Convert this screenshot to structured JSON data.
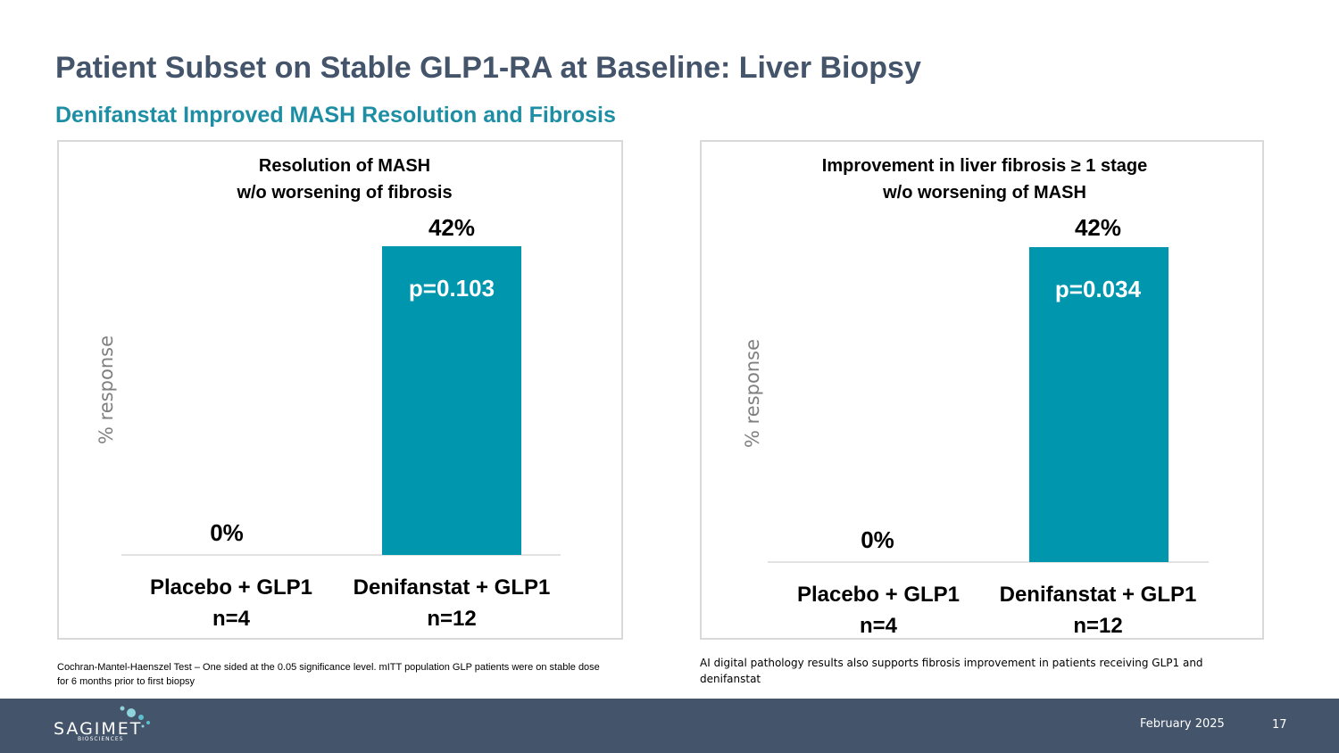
{
  "slide": {
    "title": "Patient Subset on Stable GLP1-RA at Baseline: Liver Biopsy",
    "subtitle": "Denifanstat Improved MASH Resolution and Fibrosis",
    "footnote_left": "Cochran-Mantel-Haenszel Test – One sided at the 0.05 significance level. mITT population GLP patients were on stable dose for 6 months prior to first biopsy",
    "footnote_right": "AI digital pathology results also supports fibrosis improvement in patients receiving GLP1 and denifanstat",
    "date": "February 2025",
    "page_number": "17"
  },
  "logo": {
    "name": "SAGIMET",
    "tagline": "BIOSCIENCES"
  },
  "colors": {
    "bar": "#0096ae",
    "title": "#44546a",
    "subtitle": "#1d8ea4",
    "footer": "#44546a"
  },
  "chart_data": [
    {
      "type": "bar",
      "title_lines": [
        "Resolution of MASH",
        "w/o worsening of fibrosis"
      ],
      "ylabel": "% response",
      "categories": [
        "Placebo + GLP1",
        "Denifanstat + GLP1"
      ],
      "category_n": [
        "n=4",
        "n=12"
      ],
      "values": [
        0,
        42
      ],
      "value_labels": [
        "0%",
        "42%"
      ],
      "p_value": "p=0.103",
      "ylim": [
        0,
        42
      ]
    },
    {
      "type": "bar",
      "title_lines": [
        "Improvement in liver fibrosis ≥ 1 stage",
        "w/o worsening of MASH"
      ],
      "ylabel": "% response",
      "categories": [
        "Placebo + GLP1",
        "Denifanstat + GLP1"
      ],
      "category_n": [
        "n=4",
        "n=12"
      ],
      "values": [
        0,
        42
      ],
      "value_labels": [
        "0%",
        "42%"
      ],
      "p_value": "p=0.034",
      "ylim": [
        0,
        42
      ]
    }
  ]
}
